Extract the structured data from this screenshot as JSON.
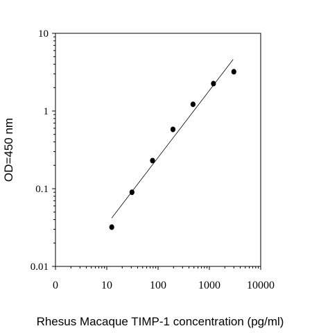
{
  "chart_data": {
    "type": "scatter",
    "xlabel": "Rhesus Macaque TIMP-1 concentration (pg/ml)",
    "ylabel": "OD=450 nm",
    "x_scale": "log",
    "y_scale": "log",
    "xlim": [
      1,
      10000
    ],
    "ylim": [
      0.01,
      10
    ],
    "x_tick_labels": [
      "0",
      "10",
      "100",
      "1000",
      "10000"
    ],
    "y_tick_labels": [
      "10",
      "1",
      "0.1",
      "0.01"
    ],
    "grid": false,
    "legend": "none",
    "series": [
      {
        "points": [
          {
            "x": 12.5,
            "y": 0.032
          },
          {
            "x": 31,
            "y": 0.09
          },
          {
            "x": 78,
            "y": 0.23
          },
          {
            "x": 195,
            "y": 0.58
          },
          {
            "x": 480,
            "y": 1.22
          },
          {
            "x": 1200,
            "y": 2.25
          },
          {
            "x": 3000,
            "y": 3.2
          }
        ]
      }
    ],
    "fit_line": {
      "x": [
        12.5,
        2900
      ],
      "y": [
        0.042,
        4.6
      ]
    }
  }
}
